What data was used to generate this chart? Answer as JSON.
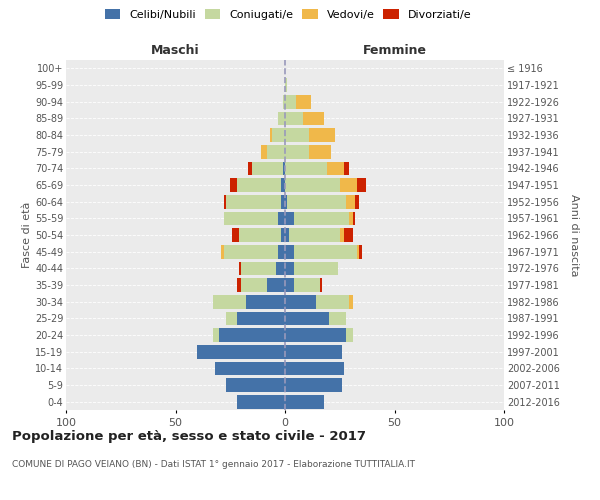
{
  "age_groups": [
    "0-4",
    "5-9",
    "10-14",
    "15-19",
    "20-24",
    "25-29",
    "30-34",
    "35-39",
    "40-44",
    "45-49",
    "50-54",
    "55-59",
    "60-64",
    "65-69",
    "70-74",
    "75-79",
    "80-84",
    "85-89",
    "90-94",
    "95-99",
    "100+"
  ],
  "birth_years": [
    "2012-2016",
    "2007-2011",
    "2002-2006",
    "1997-2001",
    "1992-1996",
    "1987-1991",
    "1982-1986",
    "1977-1981",
    "1972-1976",
    "1967-1971",
    "1962-1966",
    "1957-1961",
    "1952-1956",
    "1947-1951",
    "1942-1946",
    "1937-1941",
    "1932-1936",
    "1927-1931",
    "1922-1926",
    "1917-1921",
    "≤ 1916"
  ],
  "male": {
    "celibi": [
      22,
      27,
      32,
      40,
      30,
      22,
      18,
      8,
      4,
      3,
      2,
      3,
      2,
      2,
      1,
      0,
      0,
      0,
      0,
      0,
      0
    ],
    "coniugati": [
      0,
      0,
      0,
      0,
      3,
      5,
      15,
      12,
      16,
      25,
      19,
      25,
      25,
      20,
      14,
      8,
      6,
      3,
      1,
      0,
      0
    ],
    "vedovi": [
      0,
      0,
      0,
      0,
      0,
      0,
      0,
      0,
      0,
      1,
      0,
      0,
      0,
      0,
      0,
      3,
      1,
      0,
      0,
      0,
      0
    ],
    "divorziati": [
      0,
      0,
      0,
      0,
      0,
      0,
      0,
      2,
      1,
      0,
      3,
      0,
      1,
      3,
      2,
      0,
      0,
      0,
      0,
      0,
      0
    ]
  },
  "female": {
    "nubili": [
      18,
      26,
      27,
      26,
      28,
      20,
      14,
      4,
      4,
      4,
      2,
      4,
      1,
      0,
      0,
      0,
      0,
      0,
      0,
      0,
      0
    ],
    "coniugate": [
      0,
      0,
      0,
      0,
      3,
      8,
      15,
      12,
      20,
      29,
      23,
      25,
      27,
      25,
      19,
      11,
      11,
      8,
      5,
      1,
      0
    ],
    "vedove": [
      0,
      0,
      0,
      0,
      0,
      0,
      2,
      0,
      0,
      1,
      2,
      2,
      4,
      8,
      8,
      10,
      12,
      10,
      7,
      0,
      0
    ],
    "divorziate": [
      0,
      0,
      0,
      0,
      0,
      0,
      0,
      1,
      0,
      1,
      4,
      1,
      2,
      4,
      2,
      0,
      0,
      0,
      0,
      0,
      0
    ]
  },
  "colors": {
    "celibi": "#4472a8",
    "coniugati": "#c5d8a0",
    "vedovi": "#f0b84a",
    "divorziati": "#cc2200"
  },
  "title": "Popolazione per età, sesso e stato civile - 2017",
  "subtitle": "COMUNE DI PAGO VEIANO (BN) - Dati ISTAT 1° gennaio 2017 - Elaborazione TUTTITALIA.IT",
  "xlabel_left": "Maschi",
  "xlabel_right": "Femmine",
  "ylabel_left": "Fasce di età",
  "ylabel_right": "Anni di nascita",
  "xlim": 100,
  "bg_color": "#ebebeb",
  "legend_labels": [
    "Celibi/Nubili",
    "Coniugati/e",
    "Vedovi/e",
    "Divorziati/e"
  ]
}
